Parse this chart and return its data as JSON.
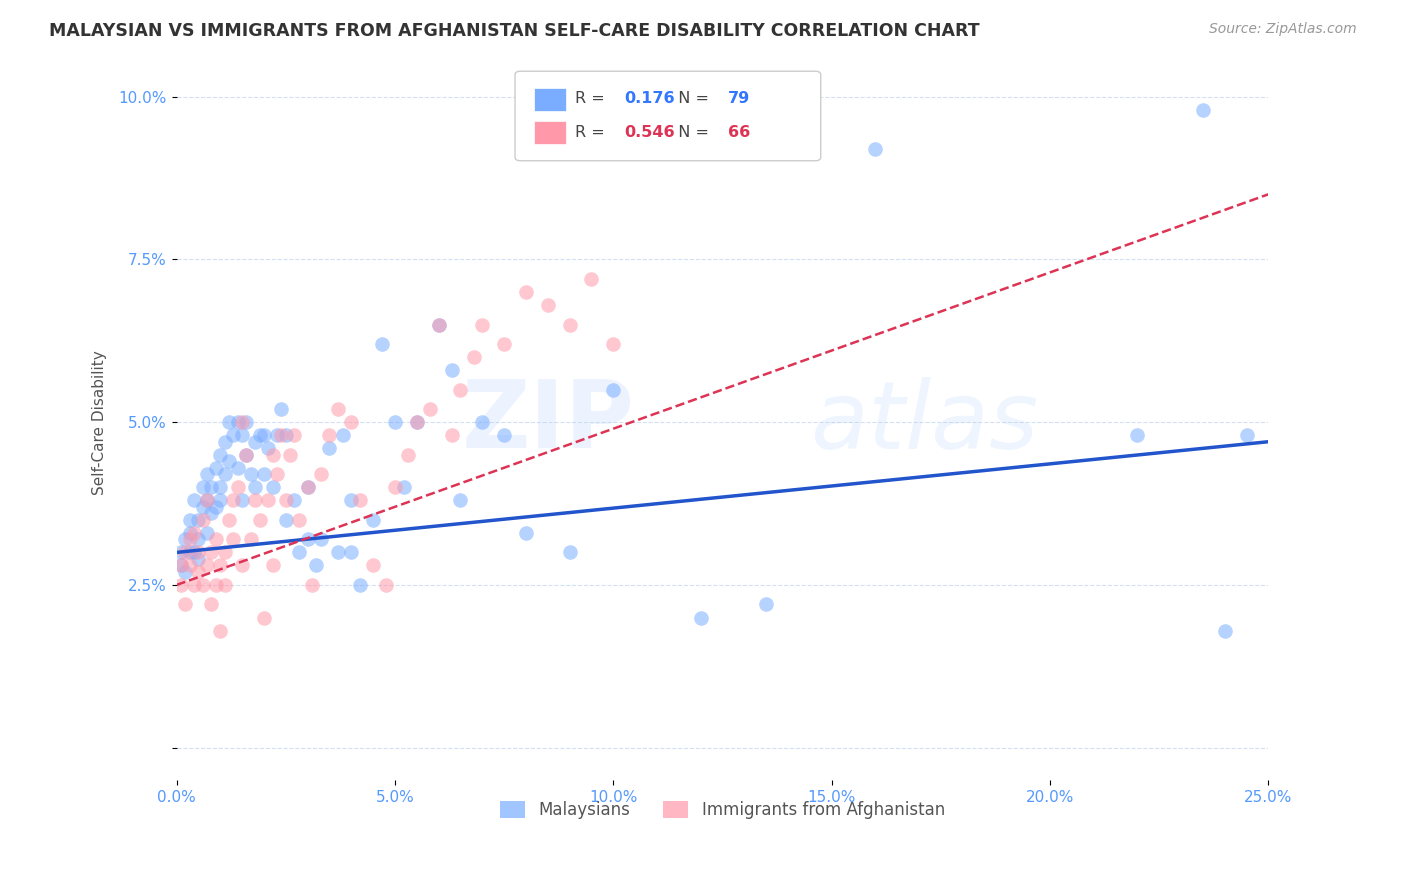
{
  "title": "MALAYSIAN VS IMMIGRANTS FROM AFGHANISTAN SELF-CARE DISABILITY CORRELATION CHART",
  "source": "Source: ZipAtlas.com",
  "ylabel": "Self-Care Disability",
  "legend_malaysians": "Malaysians",
  "legend_immigrants": "Immigrants from Afghanistan",
  "R_malaysians": 0.176,
  "N_malaysians": 79,
  "R_immigrants": 0.546,
  "N_immigrants": 66,
  "xlim": [
    0.0,
    0.25
  ],
  "ylim": [
    -0.005,
    0.105
  ],
  "xticks": [
    0.0,
    0.05,
    0.1,
    0.15,
    0.2,
    0.25
  ],
  "xtick_labels": [
    "0.0%",
    "5.0%",
    "10.0%",
    "15.0%",
    "20.0%",
    "25.0%"
  ],
  "yticks": [
    0.0,
    0.025,
    0.05,
    0.075,
    0.1
  ],
  "ytick_labels": [
    "",
    "2.5%",
    "5.0%",
    "7.5%",
    "10.0%"
  ],
  "color_malaysians": "#7aadff",
  "color_immigrants": "#ff99aa",
  "trendline_malaysians_color": "#2255cc",
  "trendline_immigrants_color": "#dd3355",
  "watermark_zip": "ZIP",
  "watermark_atlas": "atlas",
  "malaysians_x": [
    0.001,
    0.001,
    0.002,
    0.002,
    0.003,
    0.003,
    0.003,
    0.004,
    0.004,
    0.005,
    0.005,
    0.005,
    0.006,
    0.006,
    0.007,
    0.007,
    0.007,
    0.008,
    0.008,
    0.009,
    0.009,
    0.01,
    0.01,
    0.01,
    0.011,
    0.011,
    0.012,
    0.012,
    0.013,
    0.014,
    0.014,
    0.015,
    0.015,
    0.016,
    0.016,
    0.017,
    0.018,
    0.018,
    0.019,
    0.02,
    0.02,
    0.021,
    0.022,
    0.023,
    0.024,
    0.025,
    0.025,
    0.027,
    0.028,
    0.03,
    0.03,
    0.032,
    0.033,
    0.035,
    0.037,
    0.038,
    0.04,
    0.04,
    0.042,
    0.045,
    0.047,
    0.05,
    0.052,
    0.055,
    0.06,
    0.063,
    0.065,
    0.07,
    0.075,
    0.08,
    0.09,
    0.1,
    0.12,
    0.135,
    0.16,
    0.22,
    0.235,
    0.24,
    0.245
  ],
  "malaysians_y": [
    0.03,
    0.028,
    0.032,
    0.027,
    0.035,
    0.03,
    0.033,
    0.038,
    0.03,
    0.035,
    0.032,
    0.029,
    0.04,
    0.037,
    0.042,
    0.038,
    0.033,
    0.04,
    0.036,
    0.043,
    0.037,
    0.045,
    0.04,
    0.038,
    0.047,
    0.042,
    0.05,
    0.044,
    0.048,
    0.05,
    0.043,
    0.048,
    0.038,
    0.05,
    0.045,
    0.042,
    0.047,
    0.04,
    0.048,
    0.048,
    0.042,
    0.046,
    0.04,
    0.048,
    0.052,
    0.048,
    0.035,
    0.038,
    0.03,
    0.032,
    0.04,
    0.028,
    0.032,
    0.046,
    0.03,
    0.048,
    0.03,
    0.038,
    0.025,
    0.035,
    0.062,
    0.05,
    0.04,
    0.05,
    0.065,
    0.058,
    0.038,
    0.05,
    0.048,
    0.033,
    0.03,
    0.055,
    0.02,
    0.022,
    0.092,
    0.048,
    0.098,
    0.018,
    0.048
  ],
  "immigrants_x": [
    0.001,
    0.001,
    0.002,
    0.002,
    0.003,
    0.003,
    0.004,
    0.004,
    0.005,
    0.005,
    0.006,
    0.006,
    0.007,
    0.007,
    0.008,
    0.008,
    0.009,
    0.009,
    0.01,
    0.01,
    0.011,
    0.011,
    0.012,
    0.013,
    0.013,
    0.014,
    0.015,
    0.015,
    0.016,
    0.017,
    0.018,
    0.019,
    0.02,
    0.021,
    0.022,
    0.022,
    0.023,
    0.024,
    0.025,
    0.026,
    0.027,
    0.028,
    0.03,
    0.031,
    0.033,
    0.035,
    0.037,
    0.04,
    0.042,
    0.045,
    0.048,
    0.05,
    0.053,
    0.055,
    0.058,
    0.06,
    0.063,
    0.065,
    0.068,
    0.07,
    0.075,
    0.08,
    0.085,
    0.09,
    0.095,
    0.1
  ],
  "immigrants_y": [
    0.028,
    0.025,
    0.03,
    0.022,
    0.028,
    0.032,
    0.025,
    0.033,
    0.027,
    0.03,
    0.025,
    0.035,
    0.028,
    0.038,
    0.03,
    0.022,
    0.032,
    0.025,
    0.028,
    0.018,
    0.03,
    0.025,
    0.035,
    0.038,
    0.032,
    0.04,
    0.05,
    0.028,
    0.045,
    0.032,
    0.038,
    0.035,
    0.02,
    0.038,
    0.045,
    0.028,
    0.042,
    0.048,
    0.038,
    0.045,
    0.048,
    0.035,
    0.04,
    0.025,
    0.042,
    0.048,
    0.052,
    0.05,
    0.038,
    0.028,
    0.025,
    0.04,
    0.045,
    0.05,
    0.052,
    0.065,
    0.048,
    0.055,
    0.06,
    0.065,
    0.062,
    0.07,
    0.068,
    0.065,
    0.072,
    0.062
  ],
  "trendline_mal_x0": 0.0,
  "trendline_mal_x1": 0.25,
  "trendline_mal_y0": 0.03,
  "trendline_mal_y1": 0.047,
  "trendline_imm_x0": 0.0,
  "trendline_imm_x1": 0.25,
  "trendline_imm_y0": 0.025,
  "trendline_imm_y1": 0.085
}
